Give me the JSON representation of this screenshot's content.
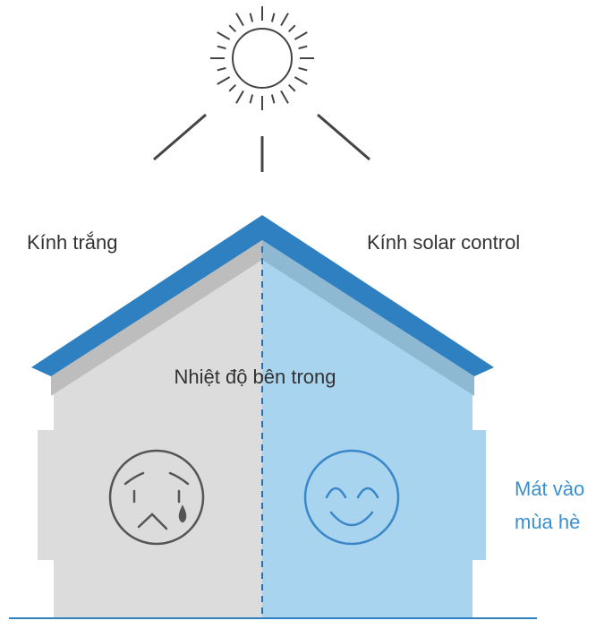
{
  "labels": {
    "left": "Kính trắng",
    "right": "Kính solar control",
    "center": "Nhiệt độ bên trong",
    "note": [
      "Mát vào",
      "mùa hè"
    ]
  }
}
